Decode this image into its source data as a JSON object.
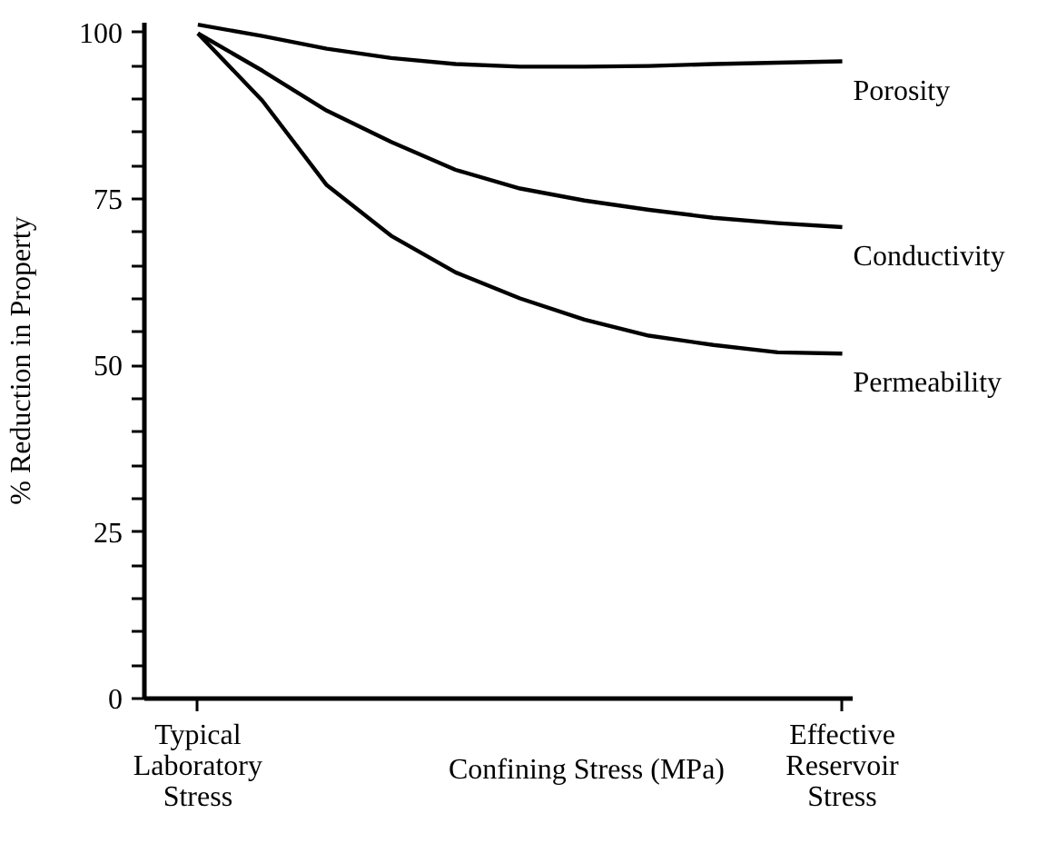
{
  "chart_data": {
    "type": "line",
    "xlabel": "Confining Stress (MPa)",
    "ylabel": "% Reduction in Property",
    "categories": [
      "Typical\nLaboratory\nStress",
      null,
      null,
      null,
      null,
      null,
      null,
      null,
      null,
      null,
      "Effective\nReservoir\nStress"
    ],
    "ylim": [
      0,
      101.5
    ],
    "yticks": [
      {
        "value": 0,
        "label": "0"
      },
      {
        "value": 5,
        "label": null
      },
      {
        "value": 10,
        "label": null
      },
      {
        "value": 15,
        "label": null
      },
      {
        "value": 20,
        "label": null
      },
      {
        "value": 25,
        "label": "25"
      },
      {
        "value": 30,
        "label": null
      },
      {
        "value": 35,
        "label": null
      },
      {
        "value": 40,
        "label": null
      },
      {
        "value": 45,
        "label": null
      },
      {
        "value": 50,
        "label": "50"
      },
      {
        "value": 55,
        "label": null
      },
      {
        "value": 60,
        "label": null
      },
      {
        "value": 65,
        "label": null
      },
      {
        "value": 70,
        "label": null
      },
      {
        "value": 75,
        "label": "75"
      },
      {
        "value": 80,
        "label": null
      },
      {
        "value": 85,
        "label": null
      },
      {
        "value": 90,
        "label": null
      },
      {
        "value": 95,
        "label": null
      },
      {
        "value": 100,
        "label": "100"
      }
    ],
    "series": [
      {
        "name": "Porosity",
        "color": "#000000",
        "values": [
          101.2,
          99.5,
          97.6,
          96.2,
          95.3,
          94.9,
          94.9,
          95.0,
          95.3,
          95.5,
          95.7
        ]
      },
      {
        "name": "Conductivity",
        "color": "#000000",
        "values": [
          99.9,
          94.3,
          88.3,
          83.6,
          79.4,
          76.6,
          74.8,
          73.4,
          72.2,
          71.4,
          70.8
        ]
      },
      {
        "name": "Permeability",
        "color": "#000000",
        "values": [
          99.9,
          89.8,
          77.1,
          69.5,
          64.0,
          60.1,
          56.9,
          54.5,
          53.1,
          52.0,
          51.8
        ]
      }
    ]
  }
}
